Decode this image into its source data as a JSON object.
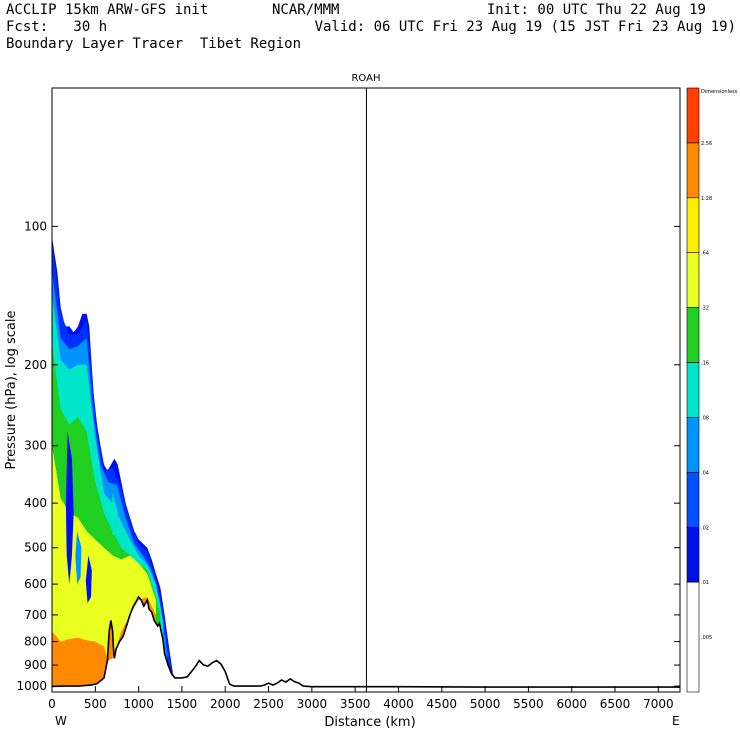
{
  "header": {
    "model": "ACCLIP 15km ARW-GFS init",
    "org": "NCAR/MMM",
    "init": "Init: 00 UTC Thu 22 Aug 19",
    "fcst": "Fcst:   30 h",
    "valid": "Valid: 06 UTC Fri 23 Aug 19 (15 JST Fri 23 Aug 19)",
    "product": "Boundary Layer Tracer  Tibet Region"
  },
  "chart_data": {
    "type": "heatmap",
    "title": "ROAH",
    "xlabel": "Distance (km)",
    "ylabel": "Pressure (hPa), log scale",
    "xlim": [
      0,
      7250
    ],
    "ylim": [
      1030,
      50
    ],
    "x_ticks": [
      0,
      500,
      1000,
      1500,
      2000,
      2500,
      3000,
      3500,
      4000,
      4500,
      5000,
      5500,
      6000,
      6500,
      7000
    ],
    "x_tick_labels": [
      "0",
      "500",
      "1000",
      "1500",
      "2000",
      "2500",
      "3000",
      "3500",
      "4000",
      "4500",
      "5000",
      "5500",
      "6000",
      "6500",
      "7000"
    ],
    "y_ticks": [
      100,
      200,
      300,
      400,
      500,
      600,
      700,
      800,
      900,
      1000
    ],
    "y_tick_labels": [
      "100",
      "200",
      "300",
      "400",
      "500",
      "600",
      "700",
      "800",
      "900",
      "1000"
    ],
    "west_label": "W",
    "east_label": "E",
    "marker_line_km": 3630,
    "colorbar": {
      "levels": [
        "Dimensionless",
        "2.56",
        "1.28",
        ".64",
        ".32",
        ".16",
        ".08",
        ".04",
        ".02",
        ".01",
        ".005"
      ],
      "colors": [
        "#ff4000",
        "#ff8a00",
        "#ffee00",
        "#e8ff20",
        "#20d020",
        "#00e6c8",
        "#0094ff",
        "#0050ff",
        "#0010e8",
        "#ffffff"
      ]
    },
    "terrain": [
      [
        0,
        1002
      ],
      [
        120,
        1000
      ],
      [
        300,
        1000
      ],
      [
        450,
        995
      ],
      [
        520,
        988
      ],
      [
        600,
        960
      ],
      [
        640,
        880
      ],
      [
        660,
        760
      ],
      [
        680,
        720
      ],
      [
        700,
        760
      ],
      [
        710,
        830
      ],
      [
        720,
        870
      ],
      [
        740,
        830
      ],
      [
        780,
        800
      ],
      [
        820,
        780
      ],
      [
        860,
        740
      ],
      [
        900,
        700
      ],
      [
        940,
        670
      ],
      [
        980,
        650
      ],
      [
        1000,
        640
      ],
      [
        1030,
        650
      ],
      [
        1060,
        670
      ],
      [
        1080,
        660
      ],
      [
        1100,
        650
      ],
      [
        1120,
        680
      ],
      [
        1150,
        690
      ],
      [
        1180,
        720
      ],
      [
        1220,
        740
      ],
      [
        1240,
        730
      ],
      [
        1260,
        760
      ],
      [
        1280,
        790
      ],
      [
        1300,
        850
      ],
      [
        1340,
        900
      ],
      [
        1380,
        940
      ],
      [
        1420,
        960
      ],
      [
        1500,
        960
      ],
      [
        1560,
        955
      ],
      [
        1600,
        935
      ],
      [
        1650,
        910
      ],
      [
        1700,
        880
      ],
      [
        1750,
        900
      ],
      [
        1800,
        905
      ],
      [
        1850,
        890
      ],
      [
        1900,
        880
      ],
      [
        1950,
        895
      ],
      [
        2000,
        930
      ],
      [
        2050,
        990
      ],
      [
        2100,
        1000
      ],
      [
        2400,
        1000
      ],
      [
        2450,
        995
      ],
      [
        2500,
        985
      ],
      [
        2550,
        995
      ],
      [
        2600,
        985
      ],
      [
        2650,
        970
      ],
      [
        2700,
        980
      ],
      [
        2750,
        965
      ],
      [
        2800,
        978
      ],
      [
        2850,
        985
      ],
      [
        2900,
        1000
      ],
      [
        3000,
        1003
      ],
      [
        4000,
        1003
      ],
      [
        5000,
        1005
      ],
      [
        7250,
        1005
      ]
    ],
    "tracer_envelope": [
      [
        0,
        105
      ],
      [
        30,
        115
      ],
      [
        60,
        125
      ],
      [
        100,
        150
      ],
      [
        150,
        165
      ],
      [
        200,
        165
      ],
      [
        250,
        170
      ],
      [
        300,
        165
      ],
      [
        350,
        155
      ],
      [
        400,
        155
      ],
      [
        430,
        165
      ],
      [
        450,
        190
      ],
      [
        480,
        230
      ],
      [
        520,
        270
      ],
      [
        560,
        300
      ],
      [
        600,
        330
      ],
      [
        640,
        340
      ],
      [
        680,
        330
      ],
      [
        720,
        320
      ],
      [
        760,
        330
      ],
      [
        800,
        360
      ],
      [
        850,
        400
      ],
      [
        900,
        430
      ],
      [
        950,
        460
      ],
      [
        1000,
        480
      ],
      [
        1050,
        490
      ],
      [
        1100,
        500
      ],
      [
        1150,
        530
      ],
      [
        1200,
        570
      ],
      [
        1250,
        610
      ],
      [
        1300,
        700
      ],
      [
        1350,
        820
      ],
      [
        1400,
        950
      ]
    ],
    "bands": [
      {
        "level": ".02",
        "color": "#0030ff",
        "top": [
          [
            0,
            108
          ],
          [
            100,
            155
          ],
          [
            200,
            172
          ],
          [
            300,
            172
          ],
          [
            400,
            160
          ],
          [
            450,
            200
          ],
          [
            520,
            280
          ],
          [
            600,
            340
          ],
          [
            700,
            335
          ],
          [
            800,
            370
          ],
          [
            900,
            440
          ],
          [
            1000,
            490
          ],
          [
            1100,
            510
          ],
          [
            1200,
            585
          ],
          [
            1300,
            720
          ],
          [
            1380,
            930
          ]
        ]
      },
      {
        "level": ".04",
        "color": "#0094ff",
        "top": [
          [
            0,
            125
          ],
          [
            100,
            175
          ],
          [
            200,
            185
          ],
          [
            300,
            182
          ],
          [
            400,
            175
          ],
          [
            480,
            260
          ],
          [
            560,
            330
          ],
          [
            650,
            360
          ],
          [
            750,
            365
          ],
          [
            850,
            430
          ],
          [
            950,
            490
          ],
          [
            1050,
            520
          ],
          [
            1150,
            560
          ],
          [
            1250,
            660
          ],
          [
            1330,
            850
          ]
        ]
      },
      {
        "level": ".08",
        "color": "#00e6c8",
        "top": [
          [
            0,
            140
          ],
          [
            100,
            195
          ],
          [
            200,
            205
          ],
          [
            300,
            200
          ],
          [
            400,
            200
          ],
          [
            500,
            290
          ],
          [
            600,
            380
          ],
          [
            700,
            400
          ],
          [
            800,
            440
          ],
          [
            900,
            480
          ],
          [
            1000,
            520
          ],
          [
            1100,
            545
          ],
          [
            1200,
            600
          ],
          [
            1280,
            720
          ]
        ]
      },
      {
        "level": ".16",
        "color": "#20d020",
        "top": [
          [
            0,
            180
          ],
          [
            100,
            250
          ],
          [
            200,
            270
          ],
          [
            300,
            260
          ],
          [
            400,
            280
          ],
          [
            500,
            360
          ],
          [
            600,
            420
          ],
          [
            700,
            460
          ],
          [
            800,
            500
          ],
          [
            900,
            520
          ],
          [
            1000,
            540
          ],
          [
            1100,
            560
          ],
          [
            1200,
            640
          ],
          [
            1250,
            700
          ]
        ]
      },
      {
        "level": ".32",
        "color": "#e8ff20",
        "top": [
          [
            0,
            300
          ],
          [
            100,
            390
          ],
          [
            200,
            420
          ],
          [
            300,
            430
          ],
          [
            400,
            460
          ],
          [
            500,
            480
          ],
          [
            600,
            500
          ],
          [
            700,
            520
          ],
          [
            800,
            530
          ],
          [
            900,
            520
          ],
          [
            1000,
            540
          ],
          [
            1100,
            570
          ],
          [
            1200,
            650
          ]
        ]
      },
      {
        "level": "1.28",
        "color": "#ff8a00",
        "top": [
          [
            0,
            760
          ],
          [
            100,
            800
          ],
          [
            200,
            790
          ],
          [
            300,
            785
          ],
          [
            400,
            795
          ],
          [
            500,
            800
          ],
          [
            600,
            820
          ],
          [
            650,
            880
          ],
          [
            700,
            870
          ],
          [
            800,
            760
          ],
          [
            900,
            700
          ],
          [
            1000,
            650
          ],
          [
            1100,
            640
          ],
          [
            1200,
            700
          ]
        ]
      }
    ],
    "blue_streaks": [
      {
        "color": "#0010e8",
        "points": [
          [
            180,
            280
          ],
          [
            230,
            320
          ],
          [
            250,
            420
          ],
          [
            230,
            520
          ],
          [
            200,
            600
          ],
          [
            170,
            520
          ],
          [
            160,
            400
          ]
        ]
      },
      {
        "color": "#0010e8",
        "points": [
          [
            420,
            520
          ],
          [
            460,
            560
          ],
          [
            450,
            640
          ],
          [
            410,
            660
          ],
          [
            390,
            590
          ]
        ]
      },
      {
        "color": "#0094ff",
        "points": [
          [
            290,
            460
          ],
          [
            340,
            500
          ],
          [
            330,
            580
          ],
          [
            290,
            600
          ],
          [
            270,
            520
          ]
        ]
      },
      {
        "color": "#00e6c8",
        "points": [
          [
            700,
            380
          ],
          [
            760,
            420
          ],
          [
            750,
            470
          ],
          [
            700,
            470
          ],
          [
            690,
            420
          ]
        ]
      }
    ]
  }
}
